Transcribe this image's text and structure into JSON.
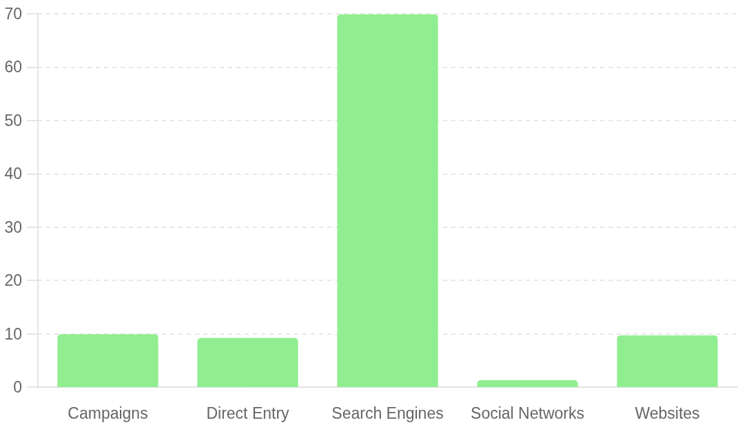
{
  "chart_data": {
    "type": "bar",
    "categories": [
      "Campaigns",
      "Direct Entry",
      "Search Engines",
      "Social Networks",
      "Websites"
    ],
    "values": [
      9.9,
      9.2,
      69.9,
      1.3,
      9.7
    ],
    "color": "#90ee90",
    "ylim": [
      0,
      70
    ],
    "yticks": [
      0,
      10,
      20,
      30,
      40,
      50,
      60,
      70
    ],
    "grid": "y"
  }
}
